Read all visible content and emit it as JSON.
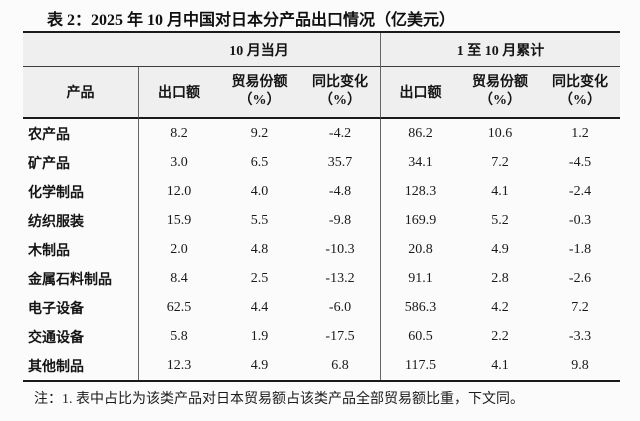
{
  "title": "表 2：2025 年 10 月中国对日本分产品出口情况（亿美元）",
  "table": {
    "group_headers": [
      "10 月当月",
      "1 至 10 月累计"
    ],
    "product_header": "产品",
    "sub_headers": {
      "export": "出口额",
      "share1": "贸易份额",
      "share2": "（%）",
      "yoy1": "同比变化",
      "yoy2": "（%）"
    },
    "rows": [
      {
        "product": "农产品",
        "values": [
          "8.2",
          "9.2",
          "-4.2",
          "86.2",
          "10.6",
          "1.2"
        ]
      },
      {
        "product": "矿产品",
        "values": [
          "3.0",
          "6.5",
          "35.7",
          "34.1",
          "7.2",
          "-4.5"
        ]
      },
      {
        "product": "化学制品",
        "values": [
          "12.0",
          "4.0",
          "-4.8",
          "128.3",
          "4.1",
          "-2.4"
        ]
      },
      {
        "product": "纺织服装",
        "values": [
          "15.9",
          "5.5",
          "-9.8",
          "169.9",
          "5.2",
          "-0.3"
        ]
      },
      {
        "product": "木制品",
        "values": [
          "2.0",
          "4.8",
          "-10.3",
          "20.8",
          "4.9",
          "-1.8"
        ]
      },
      {
        "product": "金属石料制品",
        "values": [
          "8.4",
          "2.5",
          "-13.2",
          "91.1",
          "2.8",
          "-2.6"
        ]
      },
      {
        "product": "电子设备",
        "values": [
          "62.5",
          "4.4",
          "-6.0",
          "586.3",
          "4.2",
          "7.2"
        ]
      },
      {
        "product": "交通设备",
        "values": [
          "5.8",
          "1.9",
          "-17.5",
          "60.5",
          "2.2",
          "-3.3"
        ]
      },
      {
        "product": "其他制品",
        "values": [
          "12.3",
          "4.9",
          "6.8",
          "117.5",
          "4.1",
          "9.8"
        ]
      }
    ]
  },
  "footnote": "注：1. 表中占比为该类产品对日本贸易额占该类产品全部贸易额比重，下文同。",
  "colors": {
    "page_bg": "#fbfbfb",
    "header_bg": "#efefef",
    "border_dark": "#1a1a1a",
    "border_gray": "#666666"
  }
}
